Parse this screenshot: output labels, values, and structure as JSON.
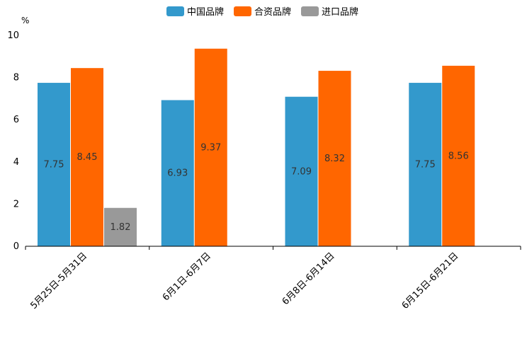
{
  "chart_data": {
    "type": "bar",
    "unit": "%",
    "categories": [
      "5月25日-5月31日",
      "6月1日-6月7日",
      "6月8日-6月14日",
      "6月15日-6月21日"
    ],
    "series": [
      {
        "name": "中国品牌",
        "color": "#3399cc",
        "values": [
          7.75,
          6.93,
          7.09,
          7.75
        ]
      },
      {
        "name": "合资品牌",
        "color": "#ff6600",
        "values": [
          8.45,
          9.37,
          8.32,
          8.56
        ]
      },
      {
        "name": "进口品牌",
        "color": "#999999",
        "values": [
          1.82,
          null,
          null,
          null
        ]
      }
    ],
    "ylim": [
      0,
      10
    ],
    "yticks": [
      0,
      2,
      4,
      6,
      8,
      10
    ],
    "legend_position": "top-center"
  }
}
